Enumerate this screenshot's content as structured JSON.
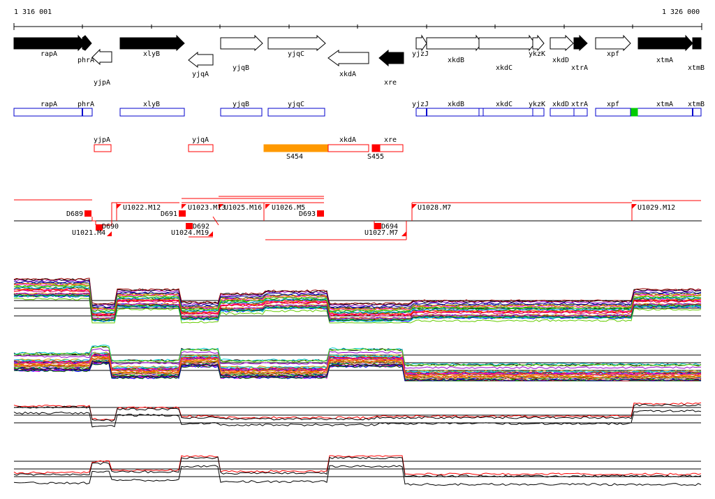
{
  "ruler": {
    "start": "1 316 001",
    "end": "1 326 000"
  },
  "genes": {
    "rapA": "rapA",
    "phrA": "phrA",
    "yjpA": "yjpA",
    "xlyB": "xlyB",
    "yjqA": "yjqA",
    "yjqB": "yjqB",
    "yjqC": "yjqC",
    "xkdA": "xkdA",
    "xre": "xre",
    "yjzJ": "yjzJ",
    "xkdB": "xkdB",
    "xkdC": "xkdC",
    "ykzK": "ykzK",
    "xkdD": "xkdD",
    "xtrA": "xtrA",
    "xpf": "xpf",
    "xtmA": "xtmA",
    "xtmB": "xtmB"
  },
  "segments": {
    "S454": "S454",
    "S455": "S455"
  },
  "tus": {
    "D689": "D689",
    "D690": "D690",
    "D691": "D691",
    "D692": "D692",
    "D693": "D693",
    "D694": "D694",
    "U1021": "U1021.M4",
    "U1022": "U1022.M12",
    "U1023": "U1023.M13",
    "U1024": "U1024.M19",
    "U1025": "U1025.M16",
    "U1026": "U1026.M5",
    "U1027": "U1027.M7",
    "U1028": "U1028.M7",
    "U1029": "U1029.M12"
  },
  "colors": {
    "black": "#000000",
    "white": "#ffffff",
    "blue": "#0000cc",
    "red": "#ff0000",
    "orange": "#ff9900",
    "green": "#00cc00"
  }
}
